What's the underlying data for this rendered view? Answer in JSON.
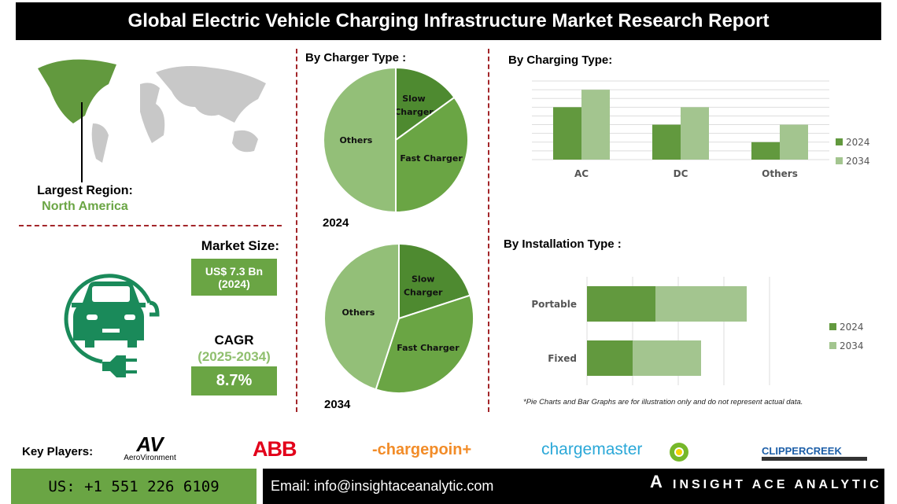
{
  "title": "Global Electric Vehicle Charging Infrastructure Market Research Report",
  "region": {
    "label": "Largest Region:",
    "value": "North America"
  },
  "market_size": {
    "label": "Market Size:",
    "value": "US$ 7.3 Bn",
    "year": "(2024)"
  },
  "cagr": {
    "label": "CAGR",
    "period": "(2025-2034)",
    "value": "8.7%"
  },
  "colors": {
    "dark_green": "#62993e",
    "light_green": "#a3c58f",
    "accent_red": "#a3262a",
    "icon_green": "#1a8a5a"
  },
  "note": "*Pie Charts and Bar Graphs are for illustration only and do not represent actual data.",
  "key_players": {
    "label": "Key Players:",
    "logos": [
      "AeroVironment",
      "ABB",
      "chargepoint",
      "bp chargemaster",
      "ClipperCreek"
    ]
  },
  "footer": {
    "phone": "US: +1 551 226 6109",
    "email": "Email: info@insightaceanalytic.com",
    "brand": "INSIGHT ACE ANALYTIC"
  },
  "chart_data": [
    {
      "type": "pie",
      "title": "By Charger Type :",
      "year_label": "2024",
      "slices": [
        {
          "label": "Slow Charger",
          "value": 15,
          "color": "#4e8a30"
        },
        {
          "label": "Fast Charger",
          "value": 35,
          "color": "#6aa544"
        },
        {
          "label": "Others",
          "value": 50,
          "color": "#93bf78"
        }
      ]
    },
    {
      "type": "pie",
      "year_label": "2034",
      "slices": [
        {
          "label": "Slow Charger",
          "value": 20,
          "color": "#4e8a30"
        },
        {
          "label": "Fast Charger",
          "value": 35,
          "color": "#6aa544"
        },
        {
          "label": "Others",
          "value": 45,
          "color": "#93bf78"
        }
      ]
    },
    {
      "type": "bar",
      "title": "By Charging Type:",
      "categories": [
        "AC",
        "DC",
        "Others"
      ],
      "series": [
        {
          "name": "2024",
          "values": [
            6,
            4,
            2
          ],
          "color": "#62993e"
        },
        {
          "name": "2034",
          "values": [
            8,
            6,
            4
          ],
          "color": "#a3c58f"
        }
      ],
      "ylim": [
        0,
        9
      ],
      "grid": true,
      "legend": "right"
    },
    {
      "type": "bar",
      "orientation": "horizontal",
      "stacked": true,
      "title": "By Installation Type :",
      "categories": [
        "Portable",
        "Fixed"
      ],
      "series": [
        {
          "name": "2024",
          "values": [
            1.5,
            1.0
          ],
          "color": "#62993e"
        },
        {
          "name": "2034",
          "values": [
            2.0,
            1.5
          ],
          "color": "#a3c58f"
        }
      ],
      "xlim": [
        0,
        4
      ],
      "grid": true,
      "legend": "right"
    }
  ]
}
